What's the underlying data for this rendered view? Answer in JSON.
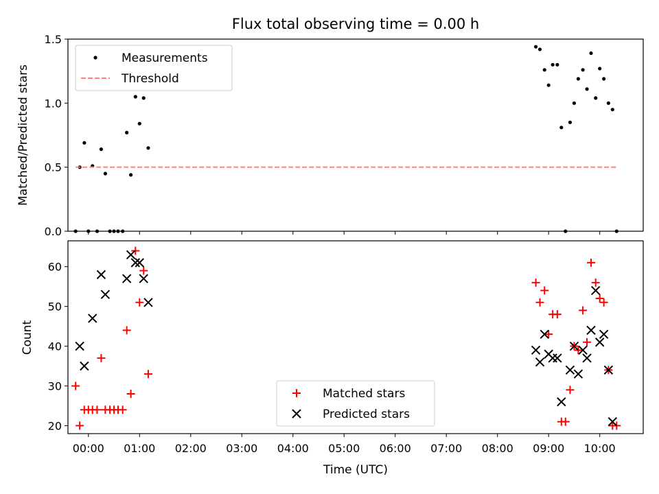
{
  "chart_data": [
    {
      "type": "scatter",
      "title": "Flux total observing time = 0.00 h",
      "xlabel": "",
      "ylabel": "Matched/Predicted stars",
      "xlim": [
        -0.4,
        10.85
      ],
      "ylim": [
        0,
        1.5
      ],
      "yticks": [
        0.0,
        0.5,
        1.0,
        1.5
      ],
      "ytick_labels": [
        "0.0",
        "0.5",
        "1.0",
        "1.5"
      ],
      "grid": false,
      "legend": "top-left",
      "legend_entries": [
        "Measurements",
        "Threshold"
      ],
      "series": [
        {
          "name": "Measurements",
          "marker": "dot",
          "color": "#000000",
          "x": [
            -0.25,
            -0.17,
            -0.08,
            0.0,
            0.08,
            0.17,
            0.25,
            0.33,
            0.42,
            0.5,
            0.58,
            0.67,
            0.75,
            0.83,
            0.92,
            1.0,
            1.08,
            1.17,
            8.75,
            8.83,
            8.92,
            9.0,
            9.08,
            9.17,
            9.25,
            9.33,
            9.42,
            9.5,
            9.58,
            9.67,
            9.75,
            9.83,
            9.92,
            10.0,
            10.08,
            10.17,
            10.25,
            10.33
          ],
          "y": [
            0.0,
            0.5,
            0.69,
            0.0,
            0.51,
            0.0,
            0.64,
            0.45,
            0.0,
            0.0,
            0.0,
            0.0,
            0.77,
            0.44,
            1.05,
            0.84,
            1.04,
            0.65,
            1.44,
            1.42,
            1.26,
            1.14,
            1.3,
            1.3,
            0.81,
            0.0,
            0.85,
            1.0,
            1.19,
            1.26,
            1.11,
            1.39,
            1.04,
            1.27,
            1.19,
            1.0,
            0.95,
            0.0
          ]
        },
        {
          "name": "Threshold",
          "style": "dashed",
          "color": "#ff7f7f",
          "x": [
            -0.25,
            10.33
          ],
          "y": [
            0.5,
            0.5
          ]
        }
      ]
    },
    {
      "type": "scatter",
      "title": "",
      "xlabel": "Time (UTC)",
      "ylabel": "Count",
      "xlim": [
        -0.4,
        10.85
      ],
      "ylim": [
        18,
        66.5
      ],
      "yticks": [
        20,
        30,
        40,
        50,
        60
      ],
      "ytick_labels": [
        "20",
        "30",
        "40",
        "50",
        "60"
      ],
      "xticks": [
        0,
        1,
        2,
        3,
        4,
        5,
        6,
        7,
        8,
        9,
        10
      ],
      "xtick_labels": [
        "00:00",
        "01:00",
        "02:00",
        "03:00",
        "04:00",
        "05:00",
        "06:00",
        "07:00",
        "08:00",
        "09:00",
        "10:00"
      ],
      "grid": false,
      "legend": "lower-center",
      "legend_entries": [
        "Matched stars",
        "Predicted stars"
      ],
      "series": [
        {
          "name": "Matched stars",
          "marker": "plus",
          "color": "#ff0000",
          "x": [
            -0.25,
            -0.17,
            -0.08,
            0.0,
            0.08,
            0.17,
            0.25,
            0.33,
            0.42,
            0.5,
            0.58,
            0.67,
            0.75,
            0.83,
            0.92,
            1.0,
            1.08,
            1.17,
            8.75,
            8.83,
            8.92,
            9.0,
            9.08,
            9.17,
            9.25,
            9.33,
            9.42,
            9.5,
            9.58,
            9.67,
            9.75,
            9.83,
            9.92,
            10.0,
            10.08,
            10.17,
            10.25,
            10.33
          ],
          "y": [
            30,
            20,
            24,
            24,
            24,
            24,
            37,
            24,
            24,
            24,
            24,
            24,
            44,
            28,
            64,
            51,
            59,
            33,
            56,
            51,
            54,
            43,
            48,
            48,
            21,
            21,
            29,
            40,
            39,
            49,
            41,
            61,
            56,
            52,
            51,
            34,
            20,
            20
          ]
        },
        {
          "name": "Predicted stars",
          "marker": "x",
          "color": "#000000",
          "x": [
            -0.17,
            -0.08,
            0.08,
            0.25,
            0.33,
            0.75,
            0.83,
            0.92,
            1.0,
            1.08,
            1.17,
            8.75,
            8.83,
            8.92,
            9.0,
            9.08,
            9.17,
            9.25,
            9.42,
            9.5,
            9.58,
            9.67,
            9.75,
            9.83,
            9.92,
            10.0,
            10.08,
            10.17,
            10.25
          ],
          "y": [
            40,
            35,
            47,
            58,
            53,
            57,
            63,
            61,
            61,
            57,
            51,
            39,
            36,
            43,
            38,
            37,
            37,
            26,
            34,
            40,
            33,
            39,
            37,
            44,
            54,
            41,
            43,
            34,
            21
          ]
        }
      ]
    }
  ]
}
